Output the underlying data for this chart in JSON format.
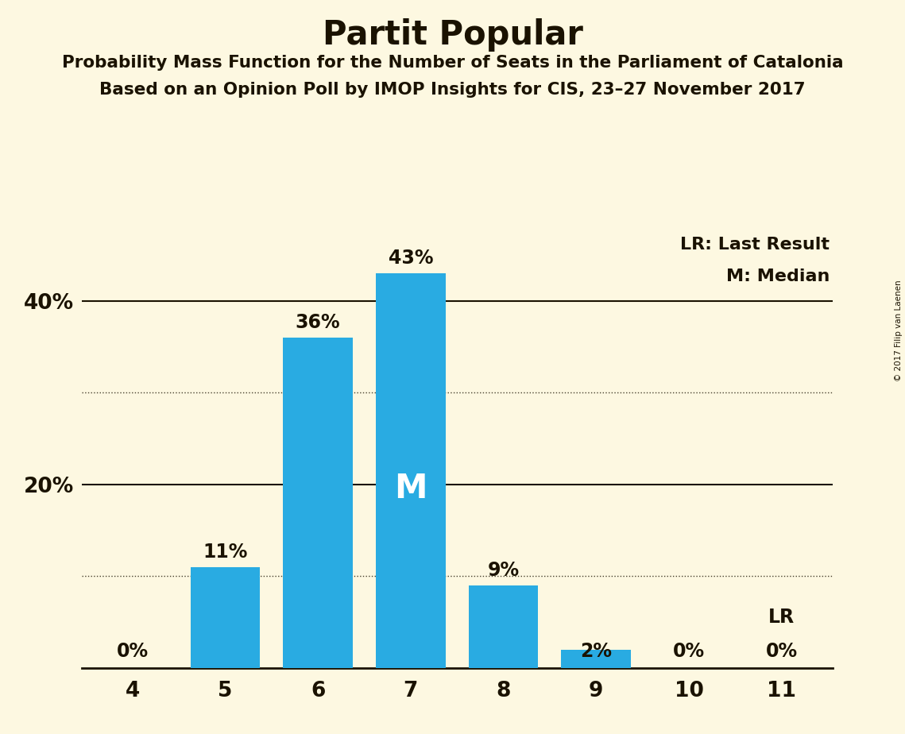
{
  "title": "Partit Popular",
  "subtitle1": "Probability Mass Function for the Number of Seats in the Parliament of Catalonia",
  "subtitle2": "Based on an Opinion Poll by IMOP Insights for CIS, 23–27 November 2017",
  "copyright": "© 2017 Filip van Laenen",
  "categories": [
    4,
    5,
    6,
    7,
    8,
    9,
    10,
    11
  ],
  "values": [
    0,
    11,
    36,
    43,
    9,
    2,
    0,
    0
  ],
  "bar_color": "#29ABE2",
  "background_color": "#FDF8E1",
  "text_color": "#1a1200",
  "median_seat": 7,
  "median_label": "M",
  "lr_seat": 11,
  "lr_label": "LR",
  "legend_lr": "LR: Last Result",
  "legend_m": "M: Median",
  "ylim": [
    0,
    48
  ],
  "solid_gridlines": [
    20,
    40
  ],
  "dotted_gridlines": [
    10,
    30
  ],
  "ytick_positions": [
    20,
    40
  ],
  "ytick_labels": [
    "20%",
    "40%"
  ]
}
